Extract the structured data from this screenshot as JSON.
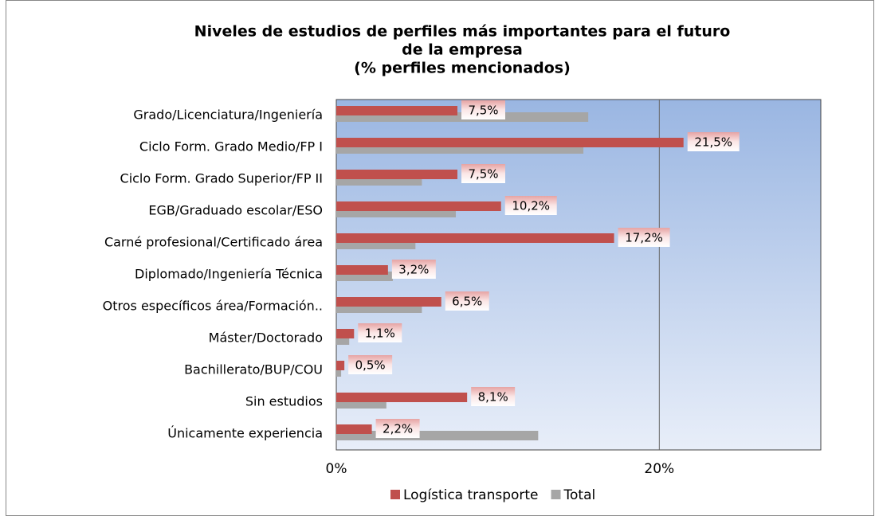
{
  "chart_data": {
    "type": "hbar",
    "title": [
      "Niveles de estudios de perfiles más importantes para el futuro",
      "de la empresa",
      "(% perfiles mencionados)"
    ],
    "categories": [
      "Grado/Licenciatura/Ingeniería",
      "Ciclo Form. Grado Medio/FP I",
      "Ciclo Form. Grado Superior/FP II",
      "EGB/Graduado escolar/ESO",
      "Carné profesional/Certificado área",
      "Diplomado/Ingeniería Técnica",
      "Otros específicos área/Formación..",
      "Máster/Doctorado",
      "Bachillerato/BUP/COU",
      "Sin estudios",
      "Únicamente experiencia"
    ],
    "series": [
      {
        "name": "Logística transporte",
        "color": "#c0504d",
        "values": [
          7.5,
          21.5,
          7.5,
          10.2,
          17.2,
          3.2,
          6.5,
          1.1,
          0.5,
          8.1,
          2.2
        ],
        "value_labels": [
          "7,5%",
          "21,5%",
          "7,5%",
          "10,2%",
          "17,2%",
          "3,2%",
          "6,5%",
          "1,1%",
          "0,5%",
          "8,1%",
          "2,2%"
        ]
      },
      {
        "name": "Total",
        "color": "#a6a6a6",
        "values": [
          15.6,
          15.3,
          5.3,
          7.4,
          4.9,
          3.5,
          5.3,
          0.8,
          0.3,
          3.1,
          12.5
        ]
      }
    ],
    "xlim": [
      0,
      30
    ],
    "xticks": [
      {
        "value": 0,
        "label": "0%"
      },
      {
        "value": 20,
        "label": "20%"
      }
    ],
    "grid": true
  }
}
